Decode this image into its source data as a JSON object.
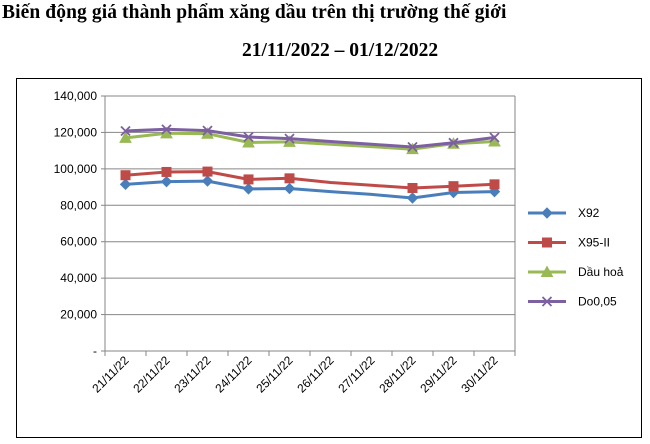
{
  "header": {
    "title": "Biến động giá thành phẩm xăng dầu trên thị trường thế giới",
    "subtitle": "21/11/2022 – 01/12/2022"
  },
  "chart_data": {
    "type": "line",
    "categories": [
      "21/11/22",
      "22/11/22",
      "23/11/22",
      "24/11/22",
      "25/11/22",
      "26/11/22",
      "27/11/22",
      "28/11/22",
      "29/11/22",
      "30/11/22"
    ],
    "y_tick_labels": [
      "-",
      "20,000",
      "40,000",
      "60,000",
      "80,000",
      "100,000",
      "120,000",
      "140,000"
    ],
    "ylim": [
      0,
      140000
    ],
    "grid": true,
    "legend_position": "right",
    "series": [
      {
        "name": "X92",
        "color": "#4a7ebb",
        "marker": "diamond",
        "values": [
          91500,
          93000,
          93300,
          89000,
          89200,
          null,
          null,
          84000,
          87000,
          87500
        ],
        "line": [
          91500,
          93000,
          93300,
          89000,
          89200,
          87500,
          86000,
          84000,
          87000,
          87500
        ]
      },
      {
        "name": "X95-II",
        "color": "#be4b48",
        "marker": "square",
        "values": [
          96500,
          98300,
          98500,
          94200,
          94800,
          null,
          null,
          89500,
          90500,
          91500
        ],
        "line": [
          96500,
          98300,
          98500,
          94200,
          94800,
          92500,
          91000,
          89500,
          90500,
          91500
        ]
      },
      {
        "name": "Dầu hoả",
        "color": "#98b954",
        "marker": "triangle",
        "values": [
          117000,
          119500,
          119300,
          114500,
          114800,
          null,
          null,
          110800,
          113800,
          115000
        ],
        "line": [
          117000,
          119500,
          119300,
          114500,
          114800,
          113500,
          112200,
          110800,
          113800,
          115000
        ]
      },
      {
        "name": "Do0,05",
        "color": "#7d60a0",
        "marker": "x",
        "values": [
          120800,
          121700,
          121000,
          117500,
          116600,
          null,
          null,
          112000,
          114300,
          117200
        ],
        "line": [
          120800,
          121700,
          121000,
          117500,
          116600,
          115000,
          113500,
          112000,
          114300,
          117200
        ]
      }
    ]
  }
}
